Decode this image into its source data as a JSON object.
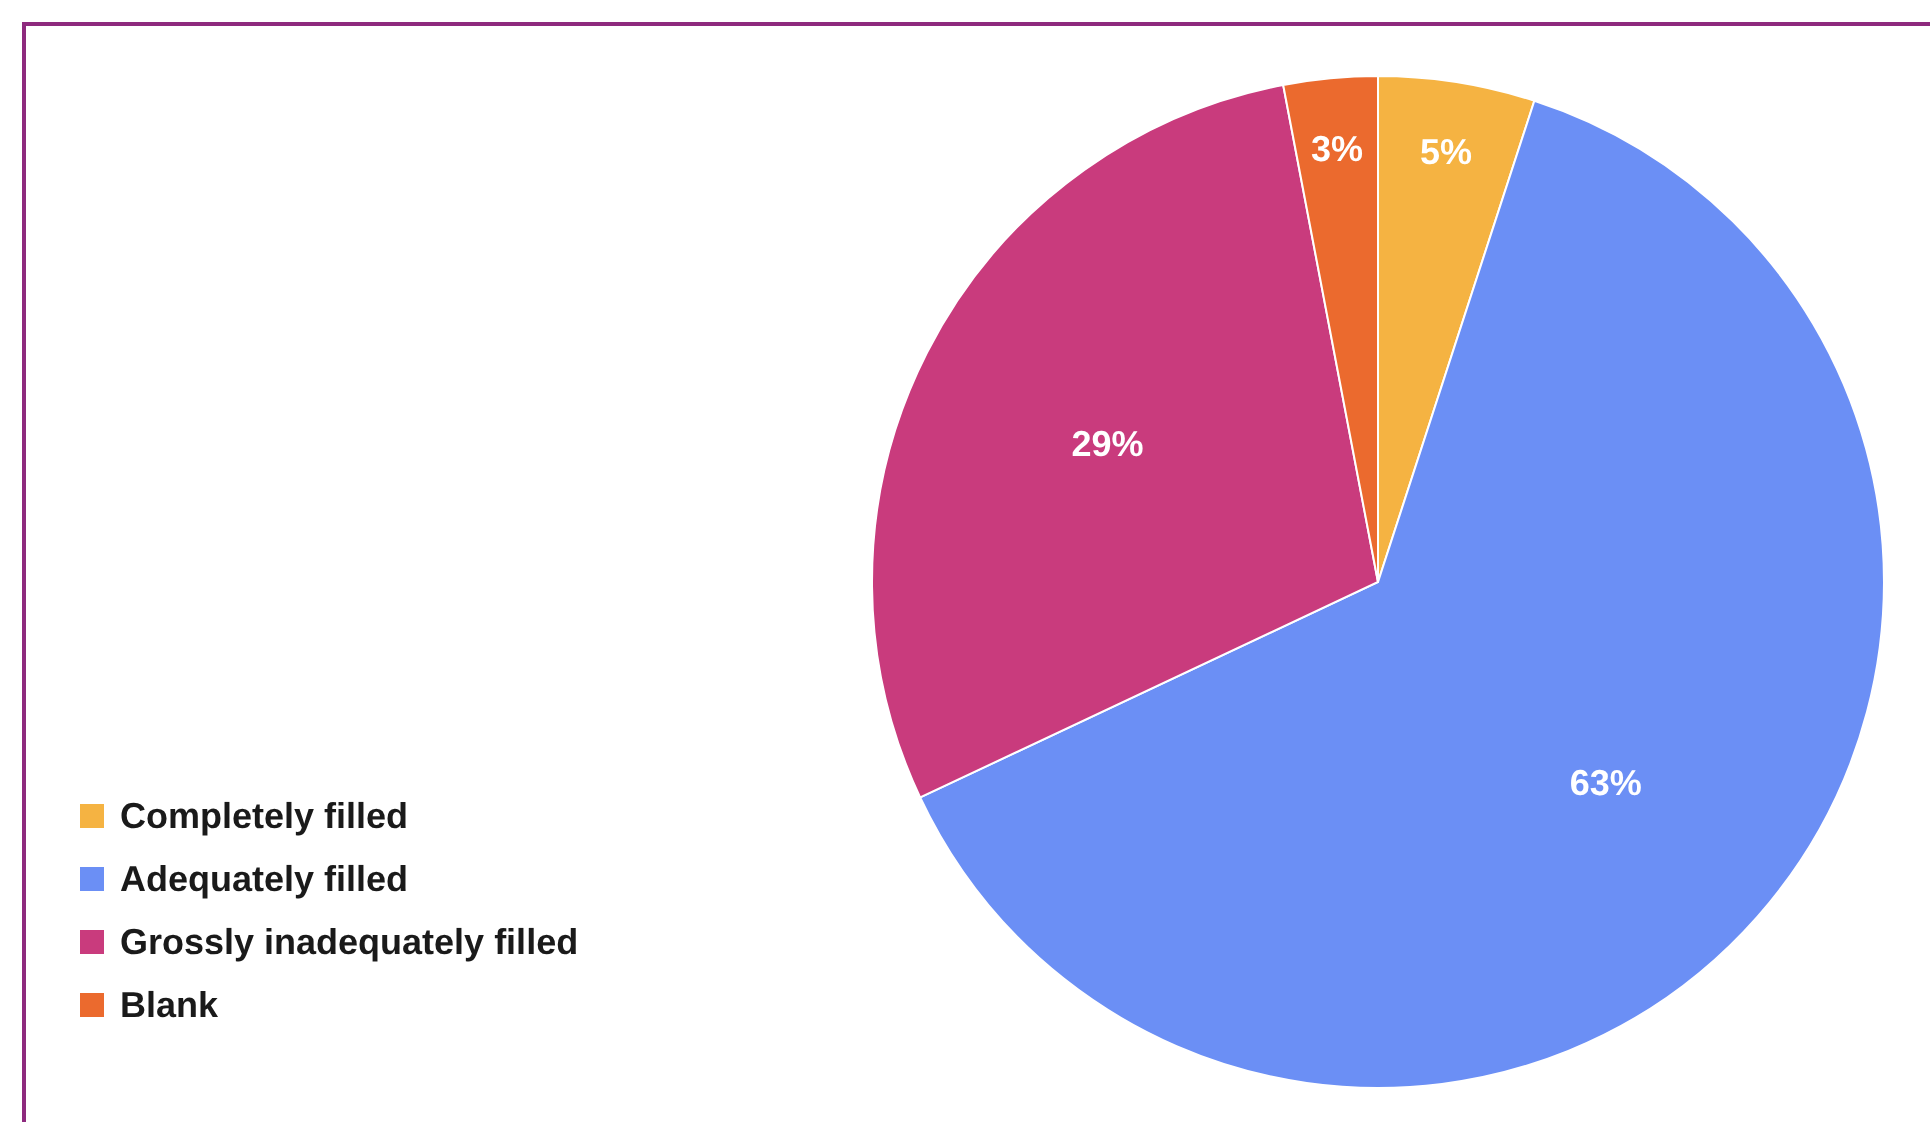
{
  "chart_data": {
    "type": "pie",
    "categories": [
      "Completely filled",
      "Adequately filled",
      "Grossly inadequately filled",
      "Blank"
    ],
    "values": [
      5,
      63,
      29,
      3
    ],
    "colors": [
      "#f5b342",
      "#6b8ff5",
      "#c93b7d",
      "#eb6a2e"
    ],
    "value_labels": [
      "5%",
      "63%",
      "29%",
      "3%"
    ],
    "legend": "bottom left"
  }
}
